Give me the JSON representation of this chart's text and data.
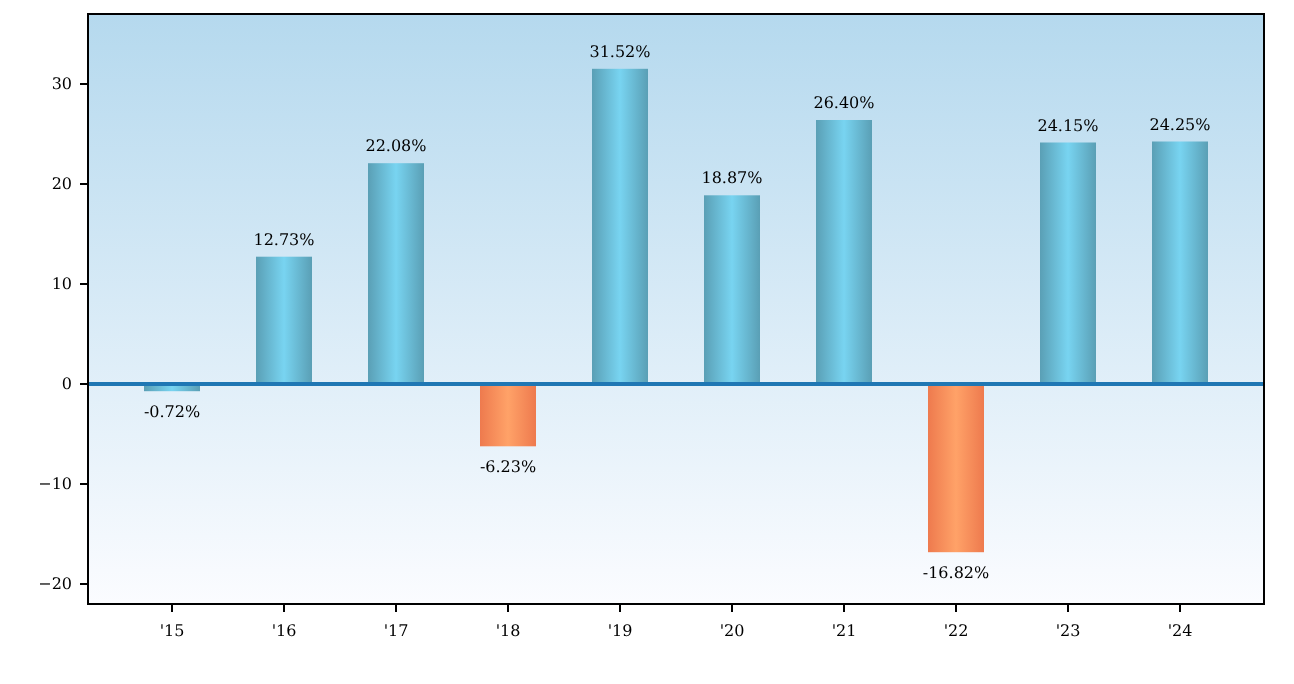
{
  "chart_data": {
    "type": "bar",
    "categories": [
      "'15",
      "'16",
      "'17",
      "'18",
      "'19",
      "'20",
      "'21",
      "'22",
      "'23",
      "'24"
    ],
    "values": [
      -0.72,
      12.73,
      22.08,
      -6.23,
      31.52,
      18.87,
      26.4,
      -16.82,
      24.15,
      24.25
    ],
    "colors": [
      "#5a9fb5",
      "#5a9fb5",
      "#5a9fb5",
      "#ee7a4e",
      "#5a9fb5",
      "#5a9fb5",
      "#5a9fb5",
      "#ee7a4e",
      "#5a9fb5",
      "#5a9fb5"
    ],
    "value_labels": [
      "-0.72%",
      "12.73%",
      "22.08%",
      "-6.23%",
      "31.52%",
      "18.87%",
      "26.40%",
      "-16.82%",
      "24.15%",
      "24.25%"
    ],
    "ylim": [
      -22,
      37
    ],
    "yticks": [
      {
        "value": -20,
        "label": "−20"
      },
      {
        "value": -10,
        "label": "−10"
      },
      0,
      10,
      20,
      30
    ],
    "ref_lines": [
      {
        "axis": "y",
        "value": 0,
        "color": "#1f77b4"
      }
    ],
    "grid": false
  }
}
